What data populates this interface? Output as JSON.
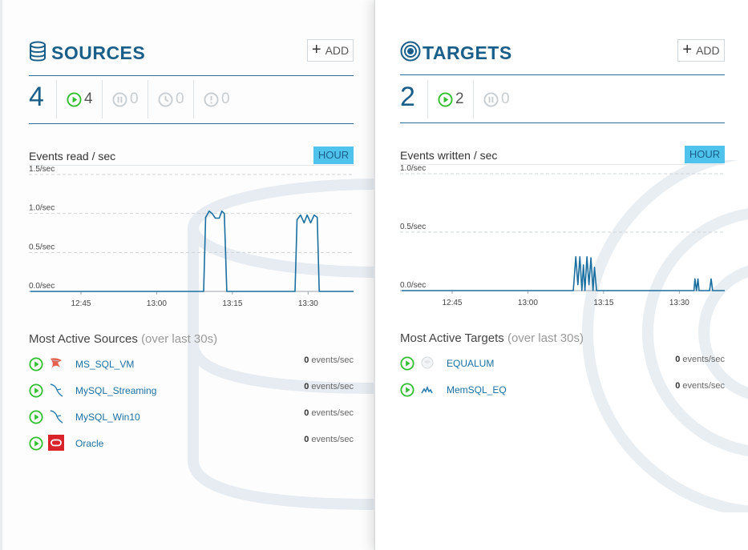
{
  "sources": {
    "title": "SOURCES",
    "add_label": "ADD",
    "total": "4",
    "counts": {
      "running": "4",
      "paused": "0",
      "pending": "0",
      "error": "0"
    },
    "chart_title": "Events read / sec",
    "range_button": "HOUR",
    "list_title": "Most Active Sources",
    "list_subtitle": "(over last 30s)",
    "items": [
      {
        "name": "MS_SQL_VM",
        "rate_value": "0",
        "rate_unit": "events/sec",
        "icon": "mssql-icon"
      },
      {
        "name": "MySQL_Streaming",
        "rate_value": "0",
        "rate_unit": "events/sec",
        "icon": "mysql-icon"
      },
      {
        "name": "MySQL_Win10",
        "rate_value": "0",
        "rate_unit": "events/sec",
        "icon": "mysql-icon"
      },
      {
        "name": "Oracle",
        "rate_value": "0",
        "rate_unit": "events/sec",
        "icon": "oracle-icon"
      }
    ]
  },
  "targets": {
    "title": "TARGETS",
    "add_label": "ADD",
    "total": "2",
    "counts": {
      "running": "2",
      "paused": "0"
    },
    "chart_title": "Events written / sec",
    "range_button": "HOUR",
    "list_title": "Most Active Targets",
    "list_subtitle": "(over last 30s)",
    "items": [
      {
        "name": "EQUALUM",
        "rate_value": "0",
        "rate_unit": "events/sec",
        "icon": "equalum-icon"
      },
      {
        "name": "MemSQL_EQ",
        "rate_value": "0",
        "rate_unit": "events/sec",
        "icon": "memsql-icon"
      }
    ]
  },
  "chart_data": [
    {
      "type": "line",
      "title": "Events read / sec",
      "x_ticks": [
        "12:45",
        "13:00",
        "13:15",
        "13:30"
      ],
      "x_tick_minutes": [
        -50,
        -35,
        -20,
        -5
      ],
      "x_range_minutes": [
        -60,
        4
      ],
      "y_ticks": [
        "0.0/sec",
        "0.5/sec",
        "1.0/sec",
        "1.5/sec"
      ],
      "y_tick_values": [
        0,
        0.5,
        1.0,
        1.5
      ],
      "ylim": [
        0,
        1.5
      ],
      "grid": true,
      "series": [
        {
          "name": "Events read",
          "points": [
            [
              -60,
              0
            ],
            [
              -25.7,
              0
            ],
            [
              -25.3,
              0.95
            ],
            [
              -24.6,
              1.03
            ],
            [
              -24.0,
              1.0
            ],
            [
              -23.4,
              0.94
            ],
            [
              -22.6,
              0.94
            ],
            [
              -22.1,
              1.03
            ],
            [
              -21.6,
              1.0
            ],
            [
              -21.1,
              0
            ],
            [
              -7.6,
              0
            ],
            [
              -7.2,
              0.92
            ],
            [
              -6.5,
              0.98
            ],
            [
              -5.8,
              0.88
            ],
            [
              -5.2,
              0.98
            ],
            [
              -4.5,
              0.88
            ],
            [
              -3.8,
              0.98
            ],
            [
              -3.2,
              0.95
            ],
            [
              -2.8,
              0
            ],
            [
              4,
              0
            ]
          ]
        }
      ],
      "color": "#1a6fa0"
    },
    {
      "type": "line",
      "title": "Events written / sec",
      "x_ticks": [
        "12:45",
        "13:00",
        "13:15",
        "13:30"
      ],
      "x_tick_minutes": [
        -50,
        -35,
        -20,
        -5
      ],
      "x_range_minutes": [
        -60,
        4
      ],
      "y_ticks": [
        "0.0/sec",
        "0.5/sec",
        "1.0/sec"
      ],
      "y_tick_values": [
        0,
        0.5,
        1.0
      ],
      "ylim": [
        0,
        1.0
      ],
      "grid": true,
      "series": [
        {
          "name": "Events written",
          "points": [
            [
              -60,
              0
            ],
            [
              -26.0,
              0
            ],
            [
              -25.5,
              0.29
            ],
            [
              -25.1,
              0.05
            ],
            [
              -24.7,
              0.29
            ],
            [
              -24.3,
              0
            ],
            [
              -24.0,
              0.22
            ],
            [
              -23.7,
              0
            ],
            [
              -23.3,
              0.29
            ],
            [
              -22.9,
              0.05
            ],
            [
              -22.5,
              0.28
            ],
            [
              -22.1,
              0
            ],
            [
              -21.8,
              0.2
            ],
            [
              -21.4,
              0
            ],
            [
              -2.1,
              0
            ],
            [
              -1.9,
              0.1
            ],
            [
              -1.6,
              0
            ],
            [
              -1.3,
              0.1
            ],
            [
              -1.1,
              0
            ],
            [
              1.0,
              0
            ],
            [
              1.3,
              0.1
            ],
            [
              1.6,
              0
            ],
            [
              4,
              0
            ]
          ]
        }
      ],
      "color": "#1a6fa0"
    }
  ]
}
